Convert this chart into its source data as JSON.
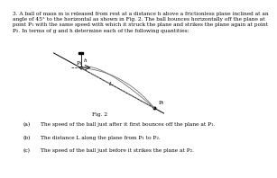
{
  "title_text": "3. A ball of mass m is released from rest at a distance h above a frictionless plane inclined at an\nangle of 45° to the horizontal as shown in Fig. 2. The ball bounces horizontally off the plane at\npoint P₁ with the same speed with which it struck the plane and strikes the plane again at point\nP₂. In terms of g and h determine each of the following quantities:",
  "fig_label": "Fig. 2",
  "items_label": [
    "(a)",
    "(b)",
    "(c)"
  ],
  "items_text": [
    "The speed of the ball just after it first bounces off the plane at P₁.",
    "The distance L along the plane from P₁ to P₂.",
    "The speed of the ball just before it strikes the plane at P₂."
  ],
  "bg_color": "#ffffff",
  "text_color": "#000000",
  "title_fontsize": 4.2,
  "item_fontsize": 4.2,
  "fig_label_fontsize": 4.2,
  "diagram_fontsize": 4.2
}
